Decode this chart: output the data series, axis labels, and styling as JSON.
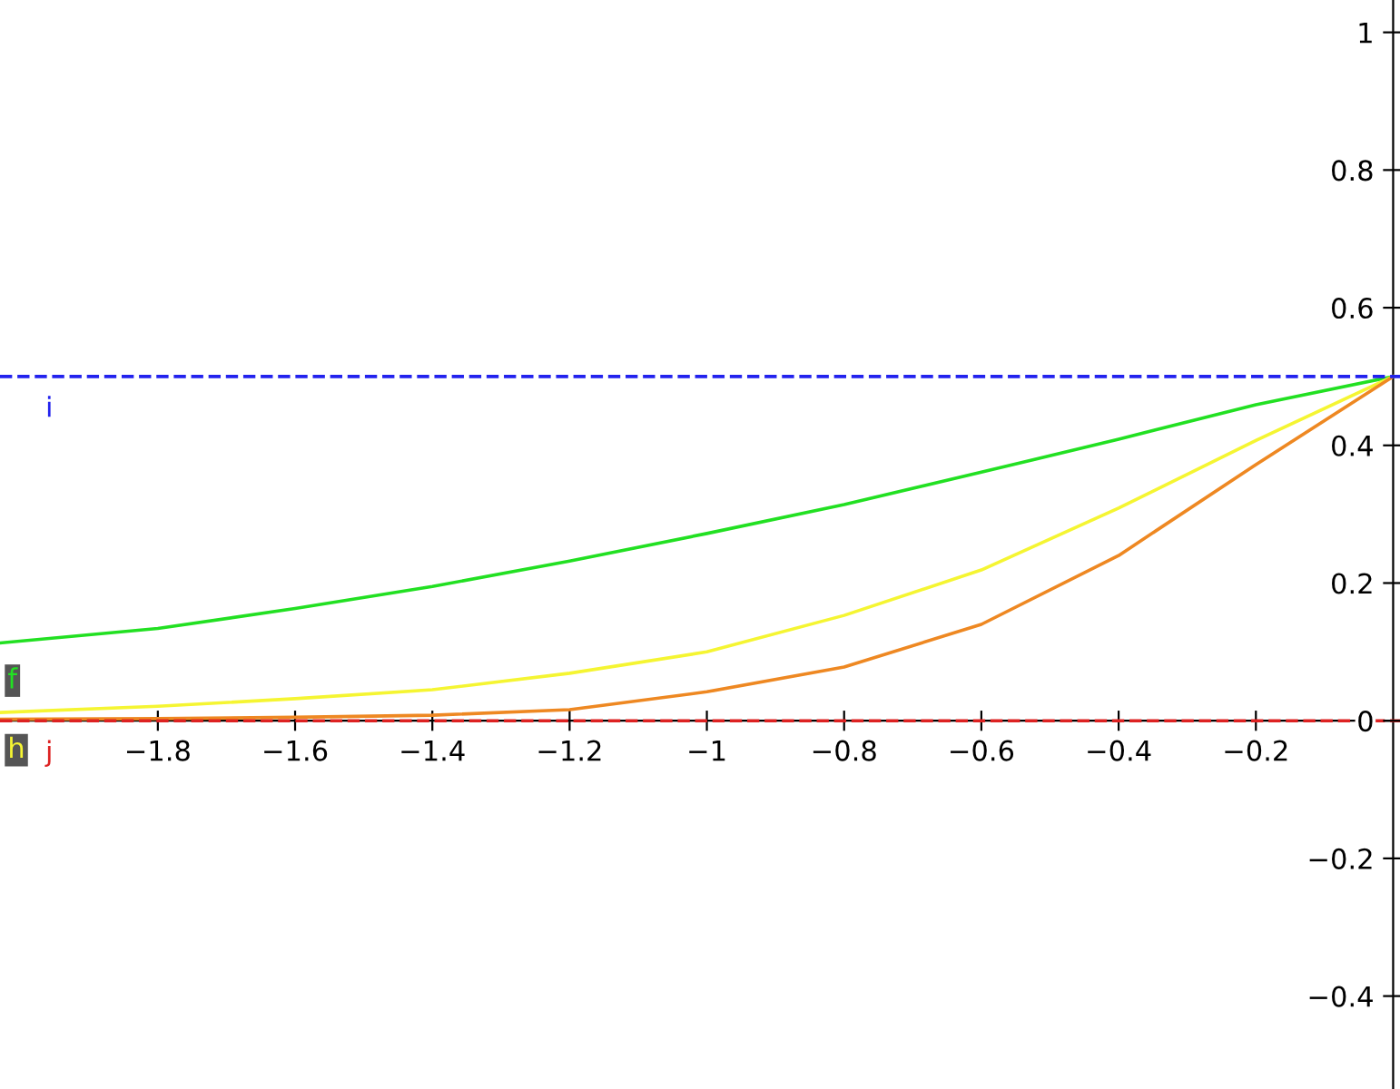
{
  "chart_data": {
    "type": "line",
    "x": [
      -2.03,
      -1.8,
      -1.6,
      -1.4,
      -1.2,
      -1.0,
      -0.8,
      -0.6,
      -0.4,
      -0.2,
      0
    ],
    "series": [
      {
        "name": "f",
        "color": "#22e022",
        "values": [
          0.113,
          0.134,
          0.163,
          0.195,
          0.232,
          0.272,
          0.314,
          0.361,
          0.409,
          0.459,
          0.5
        ]
      },
      {
        "name": "h",
        "color": "#f5f532",
        "values": [
          0.012,
          0.021,
          0.032,
          0.045,
          0.069,
          0.1,
          0.153,
          0.219,
          0.309,
          0.407,
          0.5
        ]
      },
      {
        "color": "#ee8822",
        "values": [
          0.002,
          0.003,
          0.005,
          0.008,
          0.016,
          0.042,
          0.078,
          0.14,
          0.24,
          0.372,
          0.5
        ]
      }
    ],
    "ref_lines": [
      {
        "axis": "y",
        "value": 0.5,
        "label": "i",
        "color": "#2222ee",
        "line_style": "dashed"
      },
      {
        "axis": "y",
        "value": 0,
        "label": "j",
        "color": "#dd2222",
        "line_style": "dashed"
      }
    ],
    "xlim": [
      -2.03,
      0.01
    ],
    "ylim": [
      -0.535,
      1.047
    ],
    "xticks": [
      -1.8,
      -1.6,
      -1.4,
      -1.2,
      -1,
      -0.8,
      -0.6,
      -0.4,
      -0.2
    ],
    "yticks": [
      -0.4,
      -0.2,
      0,
      0.2,
      0.4,
      0.6,
      0.8,
      1
    ],
    "grid": false,
    "legend": false,
    "marker": "none",
    "line_style": "solid"
  }
}
